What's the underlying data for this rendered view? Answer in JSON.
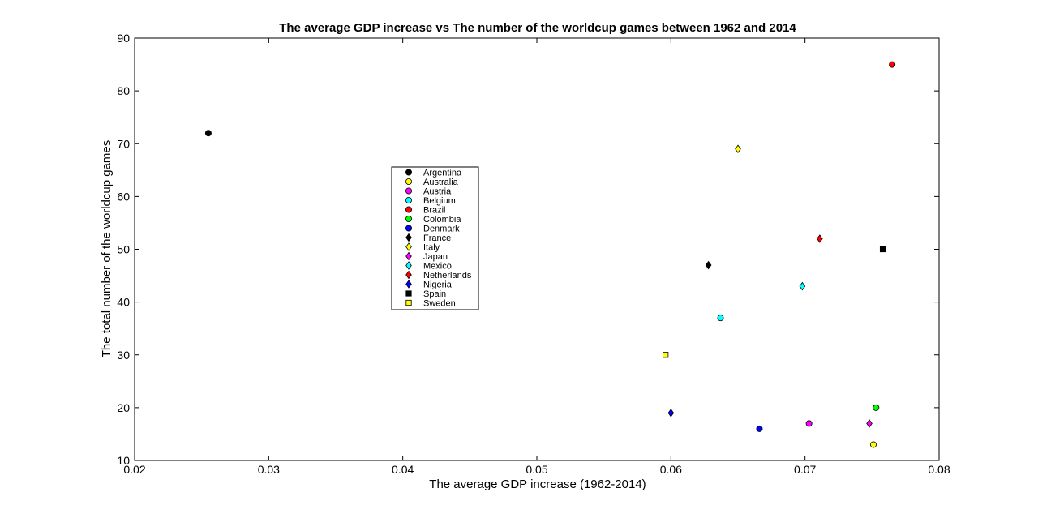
{
  "chart_data": {
    "type": "scatter",
    "title": "The average GDP increase vs The number of the worldcup games between 1962 and 2014",
    "xlabel": "The average GDP increase (1962-2014)",
    "ylabel": "The total number of the worldcup games",
    "xlim": [
      0.02,
      0.08
    ],
    "ylim": [
      10,
      90
    ],
    "xticks": [
      0.02,
      0.03,
      0.04,
      0.05,
      0.06,
      0.07,
      0.08
    ],
    "xtick_labels": [
      "0.02",
      "0.03",
      "0.04",
      "0.05",
      "0.06",
      "0.07",
      "0.08"
    ],
    "yticks": [
      10,
      20,
      30,
      40,
      50,
      60,
      70,
      80,
      90
    ],
    "ytick_labels": [
      "10",
      "20",
      "30",
      "40",
      "50",
      "60",
      "70",
      "80",
      "90"
    ],
    "grid": false,
    "legend_position": "center-left",
    "series": [
      {
        "name": "Argentina",
        "marker": "circle",
        "color": "#000000",
        "x": 0.0255,
        "y": 72
      },
      {
        "name": "Australia",
        "marker": "circle",
        "color": "#ffff00",
        "x": 0.0751,
        "y": 13
      },
      {
        "name": "Austria",
        "marker": "circle",
        "color": "#ff00ff",
        "x": 0.0703,
        "y": 17
      },
      {
        "name": "Belgium",
        "marker": "circle",
        "color": "#00ffff",
        "x": 0.0637,
        "y": 37
      },
      {
        "name": "Brazil",
        "marker": "circle",
        "color": "#ff0000",
        "x": 0.0765,
        "y": 85
      },
      {
        "name": "Colombia",
        "marker": "circle",
        "color": "#00ff00",
        "x": 0.0753,
        "y": 20
      },
      {
        "name": "Denmark",
        "marker": "circle",
        "color": "#0000ff",
        "x": 0.0666,
        "y": 16
      },
      {
        "name": "France",
        "marker": "diamond",
        "color": "#000000",
        "x": 0.0628,
        "y": 47
      },
      {
        "name": "Italy",
        "marker": "diamond",
        "color": "#ffff00",
        "x": 0.065,
        "y": 69
      },
      {
        "name": "Japan",
        "marker": "diamond",
        "color": "#ff00ff",
        "x": 0.0748,
        "y": 17
      },
      {
        "name": "Mexico",
        "marker": "diamond",
        "color": "#00ffff",
        "x": 0.0698,
        "y": 43
      },
      {
        "name": "Netherlands",
        "marker": "diamond",
        "color": "#ff0000",
        "x": 0.0711,
        "y": 52
      },
      {
        "name": "Nigeria",
        "marker": "diamond",
        "color": "#0000ff",
        "x": 0.06,
        "y": 19
      },
      {
        "name": "Spain",
        "marker": "square",
        "color": "#000000",
        "x": 0.0758,
        "y": 50
      },
      {
        "name": "Sweden",
        "marker": "square",
        "color": "#ffff00",
        "x": 0.0596,
        "y": 30
      }
    ]
  }
}
